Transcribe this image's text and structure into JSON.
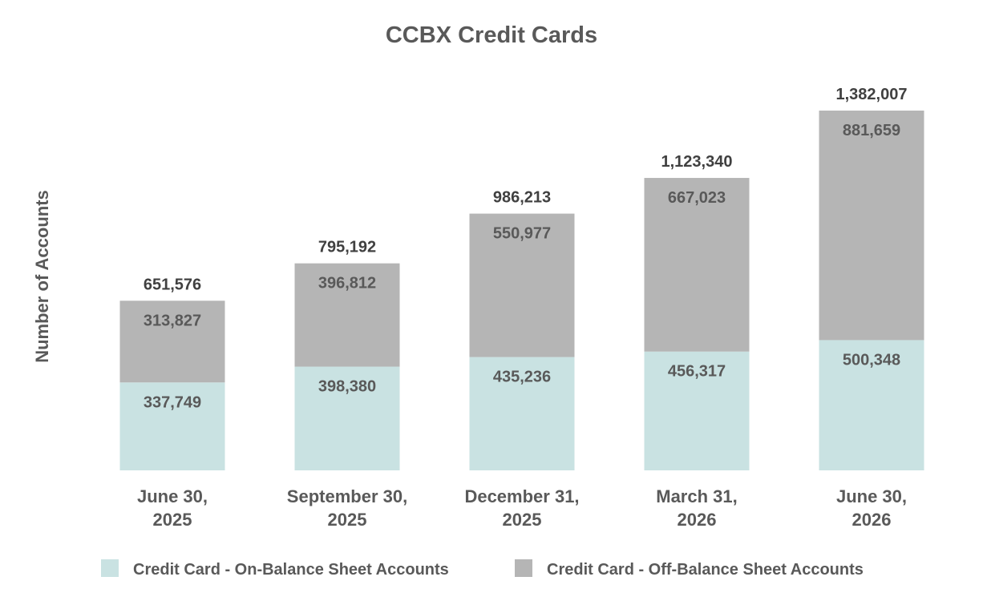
{
  "chart_data": {
    "type": "bar",
    "stacked": true,
    "title": "CCBX Credit Cards",
    "xlabel": "",
    "ylabel": "Number of Accounts",
    "categories": [
      [
        "June 30,",
        "2025"
      ],
      [
        "September 30,",
        "2025"
      ],
      [
        "December 31,",
        "2025"
      ],
      [
        "March 31,",
        "2026"
      ],
      [
        "June 30,",
        "2026"
      ]
    ],
    "series": [
      {
        "name": "Credit Card -  On-Balance Sheet Accounts",
        "color": "#c9e2e2",
        "values": [
          337749,
          398380,
          435236,
          456317,
          500348
        ]
      },
      {
        "name": "Credit Card -  Off-Balance Sheet Accounts",
        "color": "#b5b5b5",
        "values": [
          313827,
          396812,
          550977,
          667023,
          881659
        ]
      }
    ],
    "totals": [
      651576,
      795192,
      986213,
      1123340,
      1382007
    ],
    "ylim": [
      0,
      1382007
    ],
    "grid": false,
    "legend_position": "bottom"
  }
}
